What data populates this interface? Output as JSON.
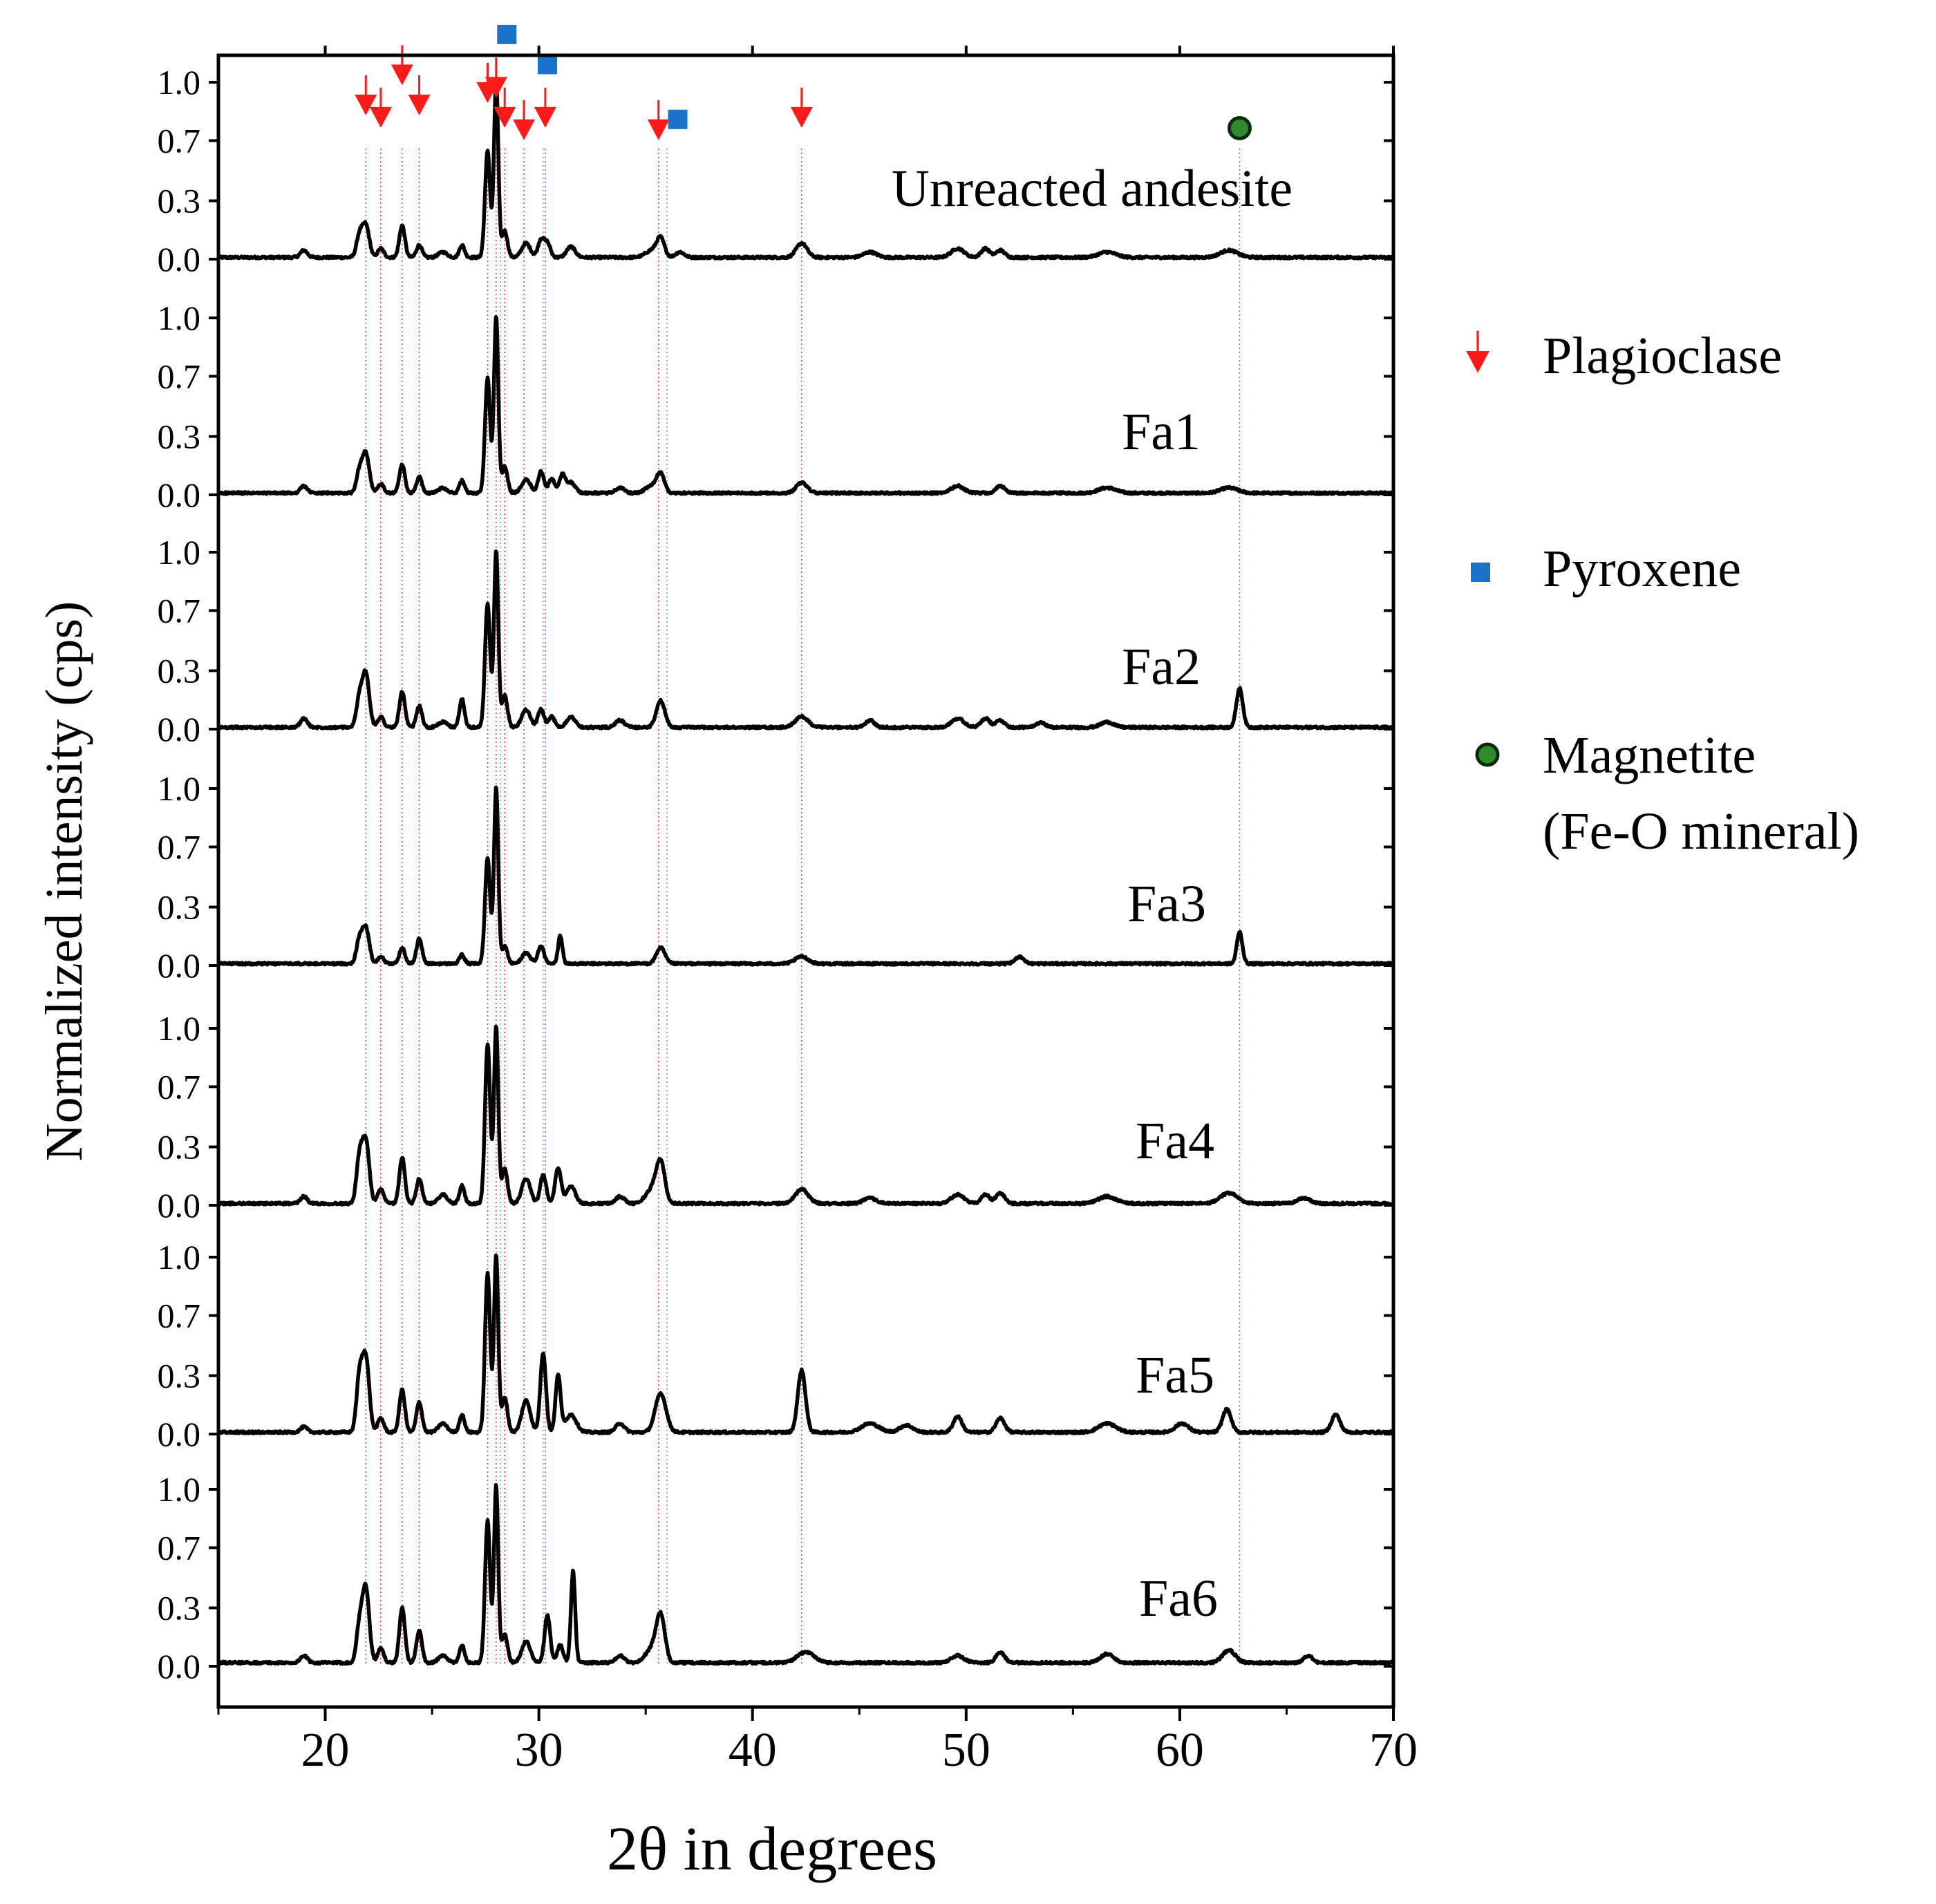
{
  "chart_data": {
    "type": "line",
    "xlabel": "2θ in degrees",
    "ylabel": "Normalized intensity (cps)",
    "xlim": [
      15,
      70
    ],
    "x_ticks": [
      20,
      30,
      40,
      50,
      60,
      70
    ],
    "y_ticks": [
      "0.0",
      "0.3",
      "0.7",
      "1.0"
    ],
    "y_tick_values": [
      0.0,
      0.33,
      0.67,
      1.0
    ],
    "grid": false,
    "legend_position": "right",
    "series": [
      {
        "name": "Unreacted andesite",
        "baseline": 0.01,
        "peaks": [
          [
            19.0,
            0.04,
            0.16
          ],
          [
            21.6,
            0.12,
            0.14
          ],
          [
            21.9,
            0.18,
            0.16
          ],
          [
            22.6,
            0.05,
            0.14
          ],
          [
            23.6,
            0.18,
            0.13
          ],
          [
            24.4,
            0.07,
            0.13
          ],
          [
            25.5,
            0.03,
            0.2
          ],
          [
            26.4,
            0.07,
            0.12
          ],
          [
            27.6,
            0.6,
            0.12
          ],
          [
            28.0,
            1.0,
            0.1
          ],
          [
            28.4,
            0.15,
            0.13
          ],
          [
            29.4,
            0.08,
            0.2
          ],
          [
            30.1,
            0.1,
            0.14
          ],
          [
            30.4,
            0.08,
            0.14
          ],
          [
            31.5,
            0.06,
            0.2
          ],
          [
            35.3,
            0.04,
            0.3
          ],
          [
            35.7,
            0.1,
            0.18
          ],
          [
            36.6,
            0.03,
            0.2
          ],
          [
            42.3,
            0.08,
            0.25
          ],
          [
            45.5,
            0.03,
            0.3
          ],
          [
            49.6,
            0.05,
            0.3
          ],
          [
            50.9,
            0.05,
            0.2
          ],
          [
            51.6,
            0.04,
            0.2
          ],
          [
            56.6,
            0.03,
            0.4
          ],
          [
            62.3,
            0.04,
            0.4
          ]
        ]
      },
      {
        "name": "Fa1",
        "baseline": 0.01,
        "peaks": [
          [
            19.0,
            0.04,
            0.16
          ],
          [
            21.6,
            0.12,
            0.14
          ],
          [
            21.9,
            0.22,
            0.16
          ],
          [
            22.6,
            0.05,
            0.14
          ],
          [
            23.6,
            0.16,
            0.13
          ],
          [
            24.4,
            0.09,
            0.13
          ],
          [
            25.5,
            0.03,
            0.2
          ],
          [
            26.4,
            0.07,
            0.12
          ],
          [
            27.6,
            0.65,
            0.12
          ],
          [
            28.0,
            1.0,
            0.1
          ],
          [
            28.4,
            0.15,
            0.13
          ],
          [
            29.4,
            0.08,
            0.2
          ],
          [
            30.1,
            0.12,
            0.14
          ],
          [
            30.6,
            0.08,
            0.14
          ],
          [
            31.1,
            0.1,
            0.14
          ],
          [
            31.5,
            0.06,
            0.2
          ],
          [
            33.8,
            0.03,
            0.2
          ],
          [
            35.3,
            0.04,
            0.3
          ],
          [
            35.7,
            0.1,
            0.18
          ],
          [
            42.3,
            0.06,
            0.25
          ],
          [
            49.6,
            0.04,
            0.3
          ],
          [
            51.6,
            0.04,
            0.2
          ],
          [
            56.6,
            0.03,
            0.4
          ],
          [
            62.3,
            0.03,
            0.4
          ]
        ]
      },
      {
        "name": "Fa2",
        "baseline": 0.01,
        "peaks": [
          [
            19.0,
            0.05,
            0.16
          ],
          [
            21.6,
            0.16,
            0.14
          ],
          [
            21.9,
            0.3,
            0.16
          ],
          [
            22.6,
            0.06,
            0.14
          ],
          [
            23.6,
            0.2,
            0.13
          ],
          [
            24.4,
            0.12,
            0.13
          ],
          [
            25.5,
            0.03,
            0.2
          ],
          [
            26.4,
            0.16,
            0.12
          ],
          [
            27.6,
            0.7,
            0.12
          ],
          [
            28.0,
            1.0,
            0.1
          ],
          [
            28.4,
            0.18,
            0.13
          ],
          [
            29.4,
            0.1,
            0.2
          ],
          [
            30.1,
            0.1,
            0.14
          ],
          [
            30.6,
            0.06,
            0.14
          ],
          [
            31.5,
            0.06,
            0.2
          ],
          [
            33.8,
            0.04,
            0.2
          ],
          [
            35.7,
            0.15,
            0.2
          ],
          [
            42.3,
            0.06,
            0.3
          ],
          [
            45.5,
            0.04,
            0.2
          ],
          [
            49.6,
            0.05,
            0.3
          ],
          [
            50.9,
            0.05,
            0.2
          ],
          [
            51.6,
            0.04,
            0.2
          ],
          [
            53.5,
            0.03,
            0.2
          ],
          [
            56.6,
            0.03,
            0.3
          ],
          [
            62.8,
            0.22,
            0.15
          ]
        ]
      },
      {
        "name": "Fa3",
        "baseline": 0.01,
        "peaks": [
          [
            21.6,
            0.13,
            0.14
          ],
          [
            21.9,
            0.2,
            0.16
          ],
          [
            22.6,
            0.04,
            0.14
          ],
          [
            23.6,
            0.09,
            0.13
          ],
          [
            24.4,
            0.14,
            0.13
          ],
          [
            26.4,
            0.05,
            0.12
          ],
          [
            27.6,
            0.6,
            0.12
          ],
          [
            28.0,
            1.0,
            0.1
          ],
          [
            28.4,
            0.1,
            0.13
          ],
          [
            29.4,
            0.06,
            0.2
          ],
          [
            30.1,
            0.1,
            0.14
          ],
          [
            31.0,
            0.16,
            0.1
          ],
          [
            35.7,
            0.09,
            0.2
          ],
          [
            42.3,
            0.04,
            0.3
          ],
          [
            52.5,
            0.04,
            0.2
          ],
          [
            62.8,
            0.18,
            0.13
          ]
        ]
      },
      {
        "name": "Fa4",
        "baseline": 0.01,
        "peaks": [
          [
            19.0,
            0.04,
            0.16
          ],
          [
            21.6,
            0.25,
            0.14
          ],
          [
            21.9,
            0.35,
            0.16
          ],
          [
            22.6,
            0.08,
            0.14
          ],
          [
            23.6,
            0.26,
            0.13
          ],
          [
            24.4,
            0.14,
            0.13
          ],
          [
            25.5,
            0.05,
            0.2
          ],
          [
            26.4,
            0.1,
            0.12
          ],
          [
            27.6,
            0.9,
            0.12
          ],
          [
            28.0,
            1.0,
            0.1
          ],
          [
            28.4,
            0.2,
            0.13
          ],
          [
            29.4,
            0.14,
            0.2
          ],
          [
            30.2,
            0.16,
            0.14
          ],
          [
            30.9,
            0.2,
            0.14
          ],
          [
            31.5,
            0.1,
            0.2
          ],
          [
            33.8,
            0.04,
            0.2
          ],
          [
            35.3,
            0.08,
            0.3
          ],
          [
            35.7,
            0.22,
            0.2
          ],
          [
            42.3,
            0.08,
            0.3
          ],
          [
            45.5,
            0.03,
            0.3
          ],
          [
            49.6,
            0.05,
            0.3
          ],
          [
            50.9,
            0.05,
            0.2
          ],
          [
            51.6,
            0.06,
            0.2
          ],
          [
            56.6,
            0.04,
            0.4
          ],
          [
            62.3,
            0.06,
            0.4
          ],
          [
            65.8,
            0.03,
            0.3
          ]
        ]
      },
      {
        "name": "Fa5",
        "baseline": 0.01,
        "peaks": [
          [
            19.0,
            0.03,
            0.16
          ],
          [
            21.6,
            0.3,
            0.14
          ],
          [
            21.9,
            0.42,
            0.16
          ],
          [
            22.6,
            0.08,
            0.14
          ],
          [
            23.6,
            0.24,
            0.13
          ],
          [
            24.4,
            0.17,
            0.13
          ],
          [
            25.5,
            0.05,
            0.2
          ],
          [
            26.4,
            0.1,
            0.12
          ],
          [
            27.6,
            0.9,
            0.12
          ],
          [
            28.0,
            1.0,
            0.1
          ],
          [
            28.4,
            0.2,
            0.13
          ],
          [
            29.4,
            0.18,
            0.2
          ],
          [
            30.2,
            0.45,
            0.13
          ],
          [
            30.9,
            0.32,
            0.12
          ],
          [
            31.5,
            0.1,
            0.25
          ],
          [
            33.8,
            0.05,
            0.2
          ],
          [
            35.7,
            0.22,
            0.25
          ],
          [
            42.3,
            0.35,
            0.18
          ],
          [
            45.5,
            0.05,
            0.4
          ],
          [
            47.2,
            0.04,
            0.3
          ],
          [
            49.6,
            0.09,
            0.2
          ],
          [
            51.6,
            0.08,
            0.2
          ],
          [
            56.6,
            0.05,
            0.4
          ],
          [
            60.1,
            0.05,
            0.3
          ],
          [
            62.2,
            0.13,
            0.2
          ],
          [
            67.3,
            0.1,
            0.2
          ]
        ]
      },
      {
        "name": "Fa6",
        "baseline": 0.02,
        "peaks": [
          [
            19.0,
            0.04,
            0.16
          ],
          [
            21.6,
            0.2,
            0.14
          ],
          [
            21.9,
            0.42,
            0.16
          ],
          [
            22.6,
            0.08,
            0.14
          ],
          [
            23.6,
            0.31,
            0.13
          ],
          [
            24.4,
            0.18,
            0.13
          ],
          [
            25.5,
            0.04,
            0.2
          ],
          [
            26.4,
            0.1,
            0.12
          ],
          [
            27.6,
            0.8,
            0.12
          ],
          [
            28.0,
            1.0,
            0.1
          ],
          [
            28.4,
            0.16,
            0.13
          ],
          [
            29.4,
            0.12,
            0.2
          ],
          [
            30.4,
            0.27,
            0.13
          ],
          [
            31.0,
            0.1,
            0.14
          ],
          [
            31.6,
            0.52,
            0.1
          ],
          [
            33.8,
            0.04,
            0.2
          ],
          [
            35.3,
            0.08,
            0.3
          ],
          [
            35.7,
            0.25,
            0.2
          ],
          [
            42.5,
            0.06,
            0.4
          ],
          [
            49.6,
            0.04,
            0.3
          ],
          [
            51.6,
            0.06,
            0.2
          ],
          [
            56.6,
            0.05,
            0.3
          ],
          [
            62.3,
            0.07,
            0.3
          ],
          [
            66.0,
            0.04,
            0.2
          ]
        ]
      }
    ],
    "reference_lines": [
      {
        "phase": "Plagioclase",
        "x": [
          21.9,
          22.6,
          23.6,
          24.4,
          27.6,
          28.0,
          28.4,
          29.3,
          30.3,
          35.6,
          42.3
        ]
      },
      {
        "phase": "Pyroxene",
        "x": [
          28.2,
          30.2,
          36.0
        ]
      },
      {
        "phase": "Magnetite",
        "x": [
          62.8
        ]
      }
    ],
    "markers": [
      {
        "phase": "Plagioclase",
        "shape": "arrow",
        "points": [
          [
            21.9,
            0.93
          ],
          [
            22.6,
            0.86
          ],
          [
            23.6,
            1.1
          ],
          [
            24.4,
            0.93
          ],
          [
            27.6,
            1.0
          ],
          [
            28.0,
            1.03
          ],
          [
            28.4,
            0.86
          ],
          [
            29.3,
            0.79
          ],
          [
            30.3,
            0.86
          ],
          [
            35.6,
            0.79
          ],
          [
            42.3,
            0.86
          ]
        ]
      },
      {
        "phase": "Pyroxene",
        "shape": "square",
        "points": [
          [
            28.5,
            1.27
          ],
          [
            30.4,
            1.1
          ],
          [
            36.5,
            0.79
          ]
        ]
      },
      {
        "phase": "Magnetite",
        "shape": "circle",
        "points": [
          [
            62.8,
            0.74
          ]
        ]
      }
    ]
  },
  "legend": [
    {
      "label": "Plagioclase",
      "icon": "red-arrow-icon"
    },
    {
      "label": "Pyroxene",
      "icon": "blue-square-icon"
    },
    {
      "label": "Magnetite\n(Fe-O mineral)",
      "icon": "green-circle-icon"
    }
  ],
  "colors": {
    "plagioclase": "#ff1a1a",
    "pyroxene": "#1a73c9",
    "magnetite_fill": "#2e8b2e",
    "magnetite_stroke": "#0b2a0b",
    "trace": "#000000",
    "pyroxene_line": "#6a8fcf"
  }
}
